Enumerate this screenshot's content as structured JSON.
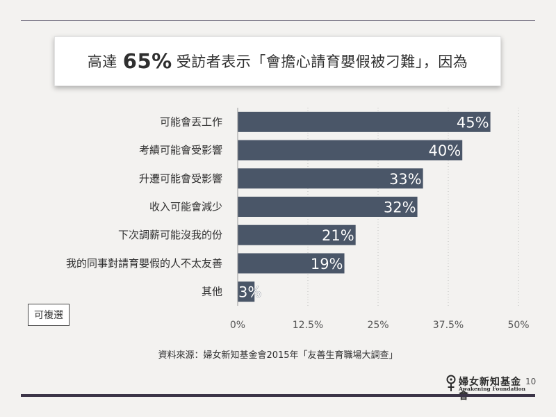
{
  "title": {
    "before": "高達",
    "highlight": "65%",
    "after": "受訪者表示「會擔心請育嬰假被刁難」，因為"
  },
  "chart_data": {
    "type": "bar",
    "orientation": "horizontal",
    "categories": [
      "可能會丟工作",
      "考績可能會受影響",
      "升遷可能會受影響",
      "收入可能會減少",
      "下次調薪可能沒我的份",
      "我的同事對請育嬰假的人不太友善",
      "其他"
    ],
    "values": [
      45,
      40,
      33,
      32,
      21,
      19,
      3
    ],
    "value_labels": [
      "45%",
      "40%",
      "33%",
      "32%",
      "21%",
      "19%",
      "3%"
    ],
    "xlim": [
      0,
      50
    ],
    "ticks": [
      0,
      12.5,
      25,
      37.5,
      50
    ],
    "tick_labels": [
      "0%",
      "12.5%",
      "25%",
      "37.5%",
      "50%"
    ],
    "grid": "vertical-dotted",
    "bar_color": "#4a5668"
  },
  "toggle_label": "可複選",
  "source": "資料來源：婦女新知基金會2015年「友善生育職場大調查」",
  "logo": {
    "chinese": "婦女新知基金會",
    "english": "Awakening Foundation"
  },
  "page_number": "10",
  "colors": {
    "background": "#f3f2f0",
    "bar": "#4a5668",
    "rule": "#3b3447"
  }
}
